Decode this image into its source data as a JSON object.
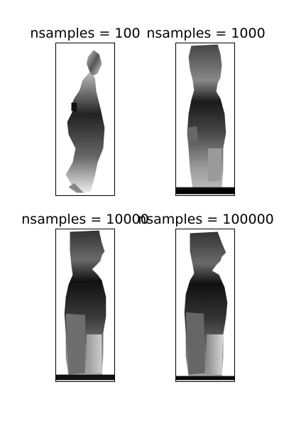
{
  "panels": [
    {
      "title": "nsamples = 100"
    },
    {
      "title": "nsamples = 1000"
    },
    {
      "title": "nsamples = 10000"
    },
    {
      "title": "nsamples = 100000"
    }
  ]
}
